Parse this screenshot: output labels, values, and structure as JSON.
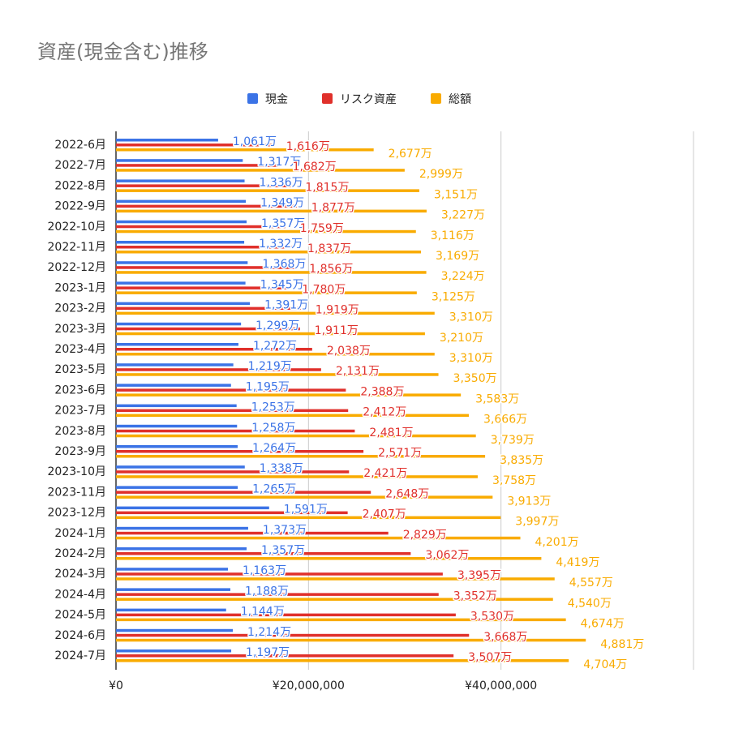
{
  "chart_data": {
    "type": "bar",
    "orientation": "horizontal",
    "title": "資産(現金含む)推移",
    "legend_position": "top",
    "categories": [
      "2022-6月",
      "2022-7月",
      "2022-8月",
      "2022-9月",
      "2022-10月",
      "2022-11月",
      "2022-12月",
      "2023-1月",
      "2023-2月",
      "2023-3月",
      "2023-4月",
      "2023-5月",
      "2023-6月",
      "2023-7月",
      "2023-8月",
      "2023-9月",
      "2023-10月",
      "2023-11月",
      "2023-12月",
      "2024-1月",
      "2024-2月",
      "2024-3月",
      "2024-4月",
      "2024-5月",
      "2024-6月",
      "2024-7月"
    ],
    "series": [
      {
        "name": "現金",
        "color": "#3b73e6",
        "values": [
          1061,
          1317,
          1336,
          1349,
          1357,
          1332,
          1368,
          1345,
          1391,
          1299,
          1272,
          1219,
          1195,
          1253,
          1258,
          1264,
          1338,
          1265,
          1591,
          1373,
          1357,
          1163,
          1188,
          1144,
          1214,
          1197
        ]
      },
      {
        "name": "リスク資産",
        "color": "#e0302b",
        "values": [
          1616,
          1682,
          1815,
          1877,
          1759,
          1837,
          1856,
          1780,
          1919,
          1911,
          2038,
          2131,
          2388,
          2412,
          2481,
          2571,
          2421,
          2648,
          2407,
          2829,
          3062,
          3395,
          3352,
          3530,
          3668,
          3507
        ]
      },
      {
        "name": "総額",
        "color": "#f9ab00",
        "values": [
          2677,
          2999,
          3151,
          3227,
          3116,
          3169,
          3224,
          3125,
          3310,
          3210,
          3310,
          3350,
          3583,
          3666,
          3739,
          3835,
          3758,
          3913,
          3997,
          4201,
          4419,
          4557,
          4540,
          4674,
          4881,
          4704
        ]
      }
    ],
    "value_unit": "万",
    "xlim": [
      0,
      60000000
    ],
    "x_ticks": [
      0,
      20000000,
      40000000,
      60000000
    ],
    "x_tick_labels": [
      "¥0",
      "¥20,000,000",
      "¥40,000,000",
      ""
    ],
    "grid": true
  }
}
